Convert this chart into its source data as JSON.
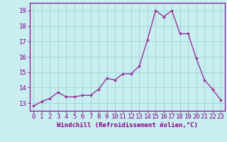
{
  "x": [
    0,
    1,
    2,
    3,
    4,
    5,
    6,
    7,
    8,
    9,
    10,
    11,
    12,
    13,
    14,
    15,
    16,
    17,
    18,
    19,
    20,
    21,
    22,
    23
  ],
  "y": [
    12.8,
    13.1,
    13.3,
    13.7,
    13.4,
    13.4,
    13.5,
    13.5,
    13.9,
    14.6,
    14.5,
    14.9,
    14.9,
    15.4,
    17.1,
    19.0,
    18.6,
    19.0,
    17.5,
    17.5,
    15.9,
    14.5,
    13.9,
    13.2
  ],
  "line_color": "#993399",
  "marker_color": "#993399",
  "bg_color": "#c8eef0",
  "grid_color": "#a0d8d8",
  "xlabel": "Windchill (Refroidissement éolien,°C)",
  "xlim": [
    -0.5,
    23.5
  ],
  "ylim": [
    12.5,
    19.5
  ],
  "yticks": [
    13,
    14,
    15,
    16,
    17,
    18,
    19
  ],
  "xticks": [
    0,
    1,
    2,
    3,
    4,
    5,
    6,
    7,
    8,
    9,
    10,
    11,
    12,
    13,
    14,
    15,
    16,
    17,
    18,
    19,
    20,
    21,
    22,
    23
  ],
  "xtick_labels": [
    "0",
    "1",
    "2",
    "3",
    "4",
    "5",
    "6",
    "7",
    "8",
    "9",
    "10",
    "11",
    "12",
    "13",
    "14",
    "15",
    "16",
    "17",
    "18",
    "19",
    "20",
    "21",
    "22",
    "23"
  ],
  "xlabel_fontsize": 6.5,
  "tick_fontsize": 6.5,
  "axis_label_color": "#880088",
  "spine_color": "#880088"
}
